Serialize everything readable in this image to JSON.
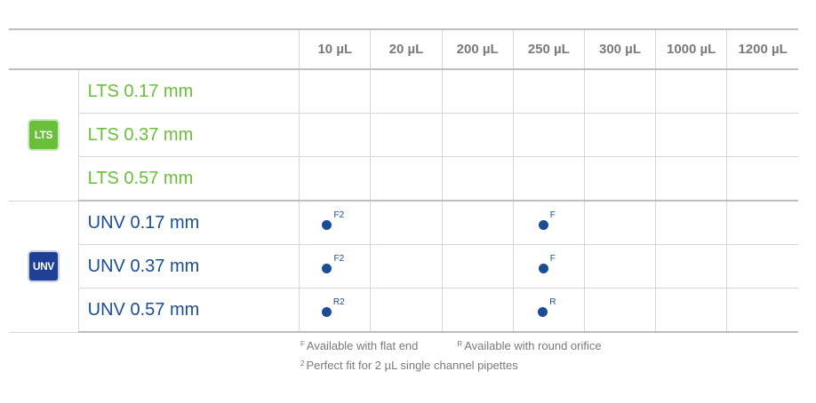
{
  "columns": [
    "10 µL",
    "20 µL",
    "200 µL",
    "250 µL",
    "300 µL",
    "1000 µL",
    "1200 µL"
  ],
  "groups": [
    {
      "badge": "LTS",
      "rows": [
        {
          "label": "LTS 0.17 mm",
          "marks": [
            "",
            "",
            "",
            "",
            "",
            "",
            ""
          ]
        },
        {
          "label": "LTS 0.37 mm",
          "marks": [
            "",
            "",
            "",
            "",
            "",
            "",
            ""
          ]
        },
        {
          "label": "LTS 0.57 mm",
          "marks": [
            "",
            "",
            "",
            "",
            "",
            "",
            ""
          ]
        }
      ]
    },
    {
      "badge": "UNV",
      "rows": [
        {
          "label": "UNV 0.17 mm",
          "marks": [
            "F2",
            "",
            "",
            "F",
            "",
            "",
            ""
          ]
        },
        {
          "label": "UNV 0.37 mm",
          "marks": [
            "F2",
            "",
            "",
            "F",
            "",
            "",
            ""
          ]
        },
        {
          "label": "UNV 0.57 mm",
          "marks": [
            "R2",
            "",
            "",
            "R",
            "",
            "",
            ""
          ]
        }
      ]
    }
  ],
  "legend": {
    "flat_sup": "F",
    "flat_text": "Available with flat end",
    "round_sup": "R",
    "round_text": "Available with round orifice",
    "fit_sup": "2",
    "fit_text": "Perfect fit for 2 µL single channel pipettes"
  },
  "colors": {
    "lts": "#6abf3a",
    "unv": "#1a4d94"
  }
}
